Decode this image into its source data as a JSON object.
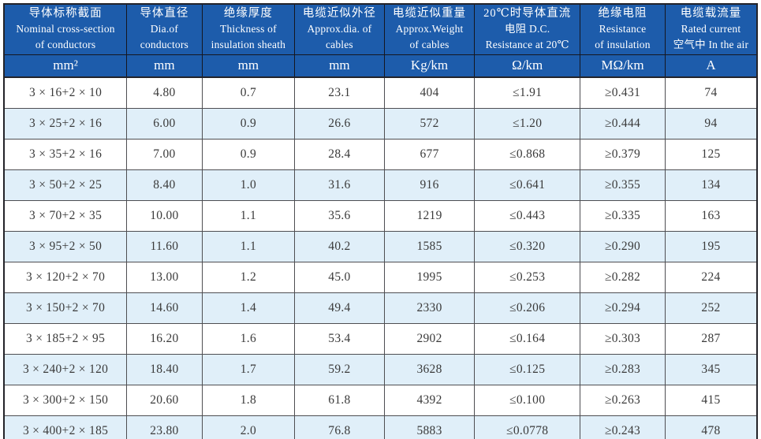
{
  "page": {
    "background_color": "#ffffff",
    "description": "Cable specification table"
  },
  "table": {
    "header_bg_color": "#1d5cab",
    "header_text_color": "#ffffff",
    "stripe_row_color": "#e0eff9",
    "body_text_color": "#3a3a3a",
    "columns": [
      {
        "id": "nominal-cross-section",
        "lines": [
          "导体标称截面",
          "Nominal cross-section",
          "of conductors"
        ]
      },
      {
        "id": "dia-of-conductors",
        "lines": [
          "导体直径",
          "Dia.of",
          "conductors"
        ]
      },
      {
        "id": "insulation-thickness",
        "lines": [
          "绝缘厚度",
          "Thickness of",
          "insulation sheath"
        ]
      },
      {
        "id": "approx-dia-of-cables",
        "lines": [
          "电缆近似外径",
          "Approx.dia. of",
          "cables"
        ]
      },
      {
        "id": "approx-weight",
        "lines": [
          "电缆近似重量",
          "Approx.Weight",
          "of cables"
        ]
      },
      {
        "id": "dc-resistance-20c",
        "lines": [
          "20℃时导体直流",
          "电阻 D.C.",
          "Resistance at 20℃"
        ]
      },
      {
        "id": "insulation-resistance",
        "lines": [
          "绝缘电阻",
          "Resistance",
          "of insulation"
        ]
      },
      {
        "id": "rated-current",
        "lines": [
          "电缆载流量",
          "Rated current",
          "空气中 In the air"
        ]
      }
    ],
    "units": [
      "mm²",
      "mm",
      "mm",
      "mm",
      "Kg/km",
      "Ω/km",
      "MΩ/km",
      "A"
    ],
    "rows": [
      [
        "3 × 16+2 × 10",
        "4.80",
        "0.7",
        "23.1",
        "404",
        "≤1.91",
        "≥0.431",
        "74"
      ],
      [
        "3 × 25+2 × 16",
        "6.00",
        "0.9",
        "26.6",
        "572",
        "≤1.20",
        "≥0.444",
        "94"
      ],
      [
        "3 × 35+2 × 16",
        "7.00",
        "0.9",
        "28.4",
        "677",
        "≤0.868",
        "≥0.379",
        "125"
      ],
      [
        "3 × 50+2 × 25",
        "8.40",
        "1.0",
        "31.6",
        "916",
        "≤0.641",
        "≥0.355",
        "134"
      ],
      [
        "3 × 70+2 × 35",
        "10.00",
        "1.1",
        "35.6",
        "1219",
        "≤0.443",
        "≥0.335",
        "163"
      ],
      [
        "3 × 95+2 × 50",
        "11.60",
        "1.1",
        "40.2",
        "1585",
        "≤0.320",
        "≥0.290",
        "195"
      ],
      [
        "3 × 120+2 × 70",
        "13.00",
        "1.2",
        "45.0",
        "1995",
        "≤0.253",
        "≥0.282",
        "224"
      ],
      [
        "3 × 150+2 × 70",
        "14.60",
        "1.4",
        "49.4",
        "2330",
        "≤0.206",
        "≥0.294",
        "252"
      ],
      [
        "3 × 185+2 × 95",
        "16.20",
        "1.6",
        "53.4",
        "2902",
        "≤0.164",
        "≥0.303",
        "287"
      ],
      [
        "3 × 240+2 × 120",
        "18.40",
        "1.7",
        "59.2",
        "3628",
        "≤0.125",
        "≥0.283",
        "345"
      ],
      [
        "3 × 300+2 × 150",
        "20.60",
        "1.8",
        "61.8",
        "4392",
        "≤0.100",
        "≥0.263",
        "415"
      ],
      [
        "3 × 400+2 × 185",
        "23.80",
        "2.0",
        "76.8",
        "5883",
        "≤0.0778",
        "≥0.243",
        "478"
      ]
    ]
  }
}
